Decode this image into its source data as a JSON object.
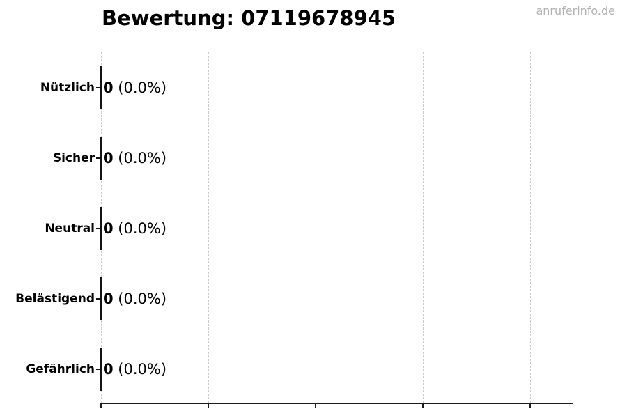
{
  "watermark": "anruferinfo.de",
  "colors": {
    "background": "#ffffff",
    "text": "#000000",
    "watermark": "#b2b2b2",
    "grid": "#cccccc",
    "axis": "#1c1c1c"
  },
  "chart_data": {
    "type": "bar",
    "orientation": "horizontal",
    "title": "Bewertung: 07119678945",
    "categories": [
      "Nützlich",
      "Sicher",
      "Neutral",
      "Belästigend",
      "Gefährlich"
    ],
    "values": [
      0,
      0,
      0,
      0,
      0
    ],
    "percentages": [
      0.0,
      0.0,
      0.0,
      0.0,
      0.0
    ],
    "rows": [
      {
        "label": "Nützlich",
        "count": "0",
        "suffix": " (0.0%)"
      },
      {
        "label": "Sicher",
        "count": "0",
        "suffix": " (0.0%)"
      },
      {
        "label": "Neutral",
        "count": "0",
        "suffix": " (0.0%)"
      },
      {
        "label": "Belästigend",
        "count": "0",
        "suffix": " (0.0%)"
      },
      {
        "label": "Gefährlich",
        "count": "0",
        "suffix": " (0.0%)"
      }
    ],
    "xlabel": "",
    "ylabel": "",
    "xlim": [
      0,
      1.1
    ],
    "x_ticks": [
      0,
      0.25,
      0.5,
      0.75,
      1.0
    ],
    "x_tick_labels_visible": false,
    "grid": "vertical-dashed",
    "legend": "none",
    "bar_fill": "none",
    "bar_edge_color": "#141414"
  }
}
